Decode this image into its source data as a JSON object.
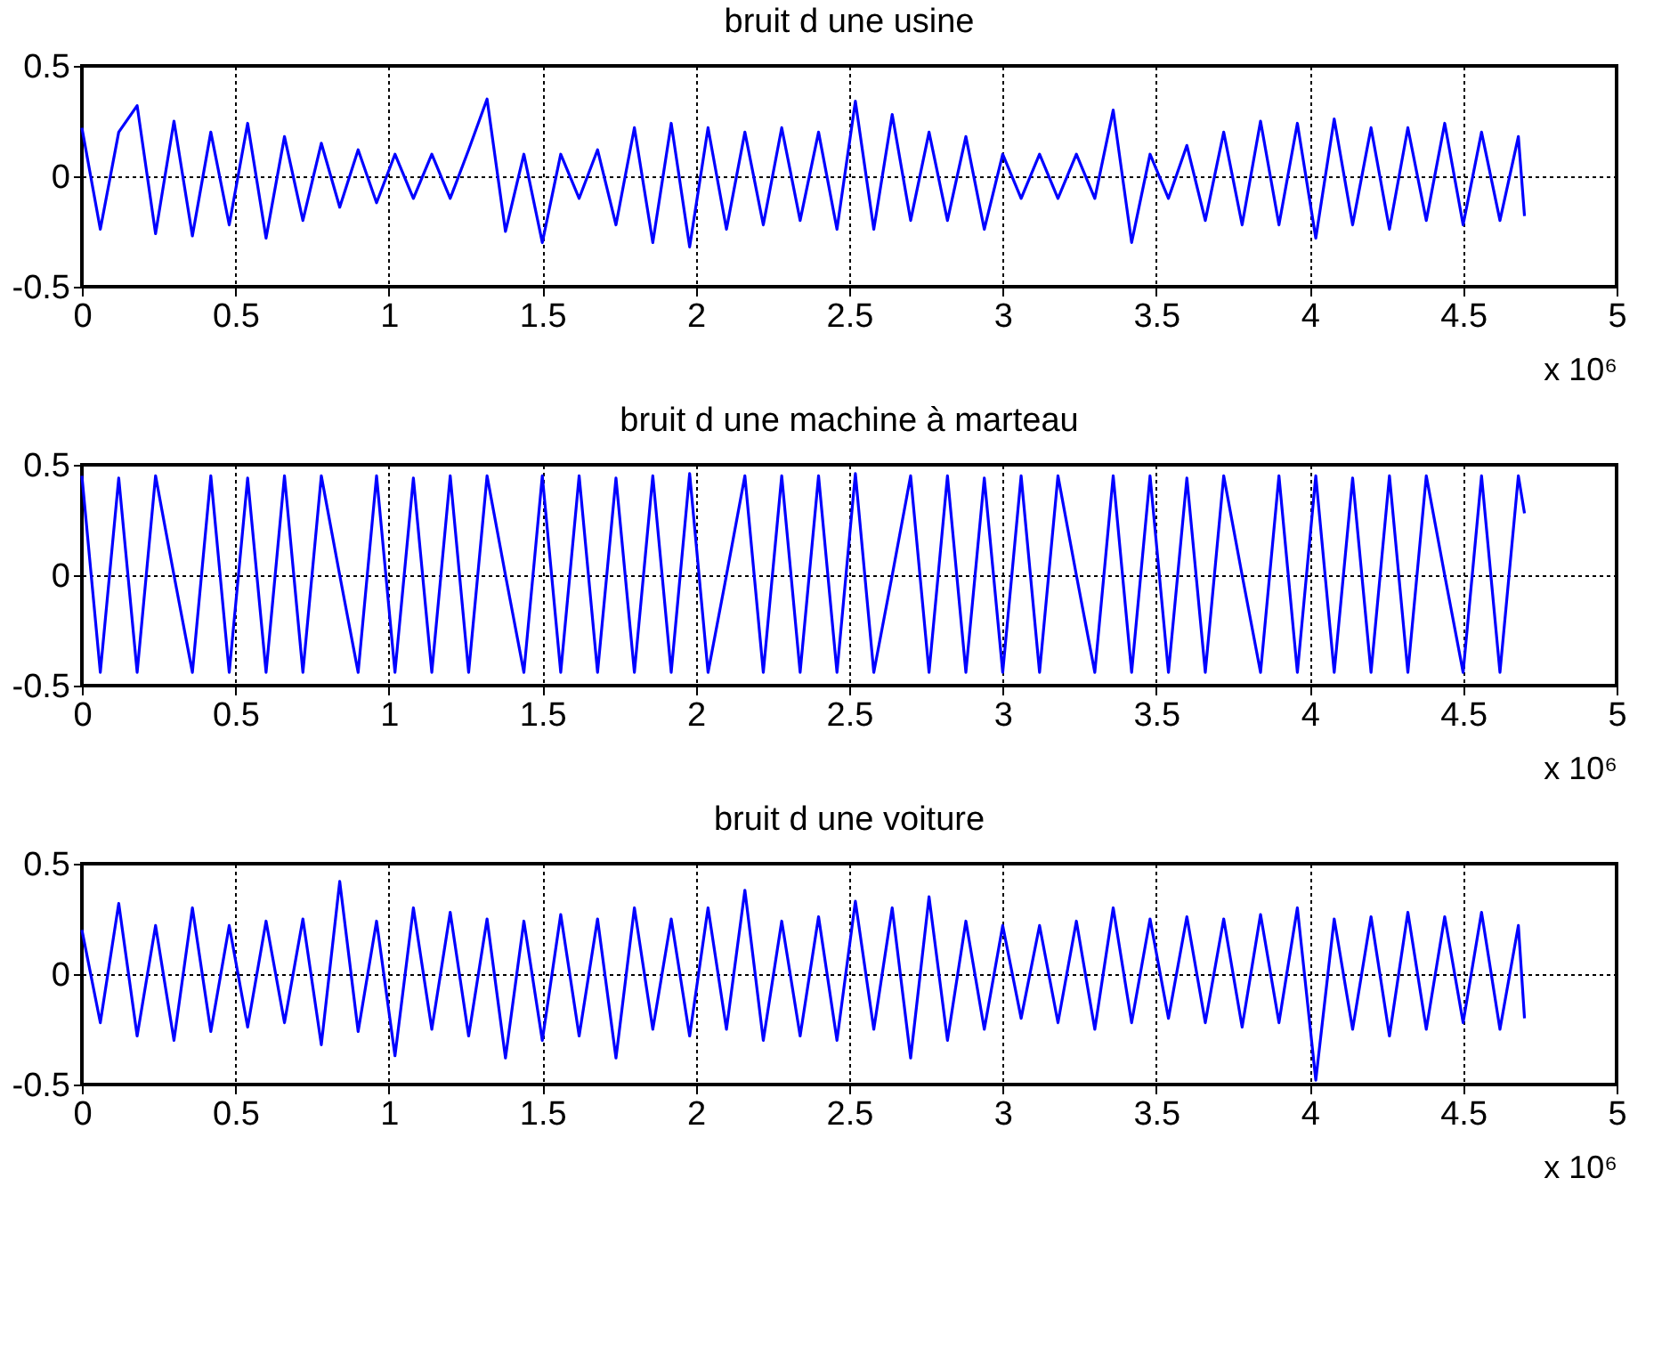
{
  "chart_data": [
    {
      "type": "line",
      "title": "bruit d une usine",
      "xlabel": "x 10⁶",
      "color": "#0000ff",
      "grid": true,
      "xlim": [
        0,
        5
      ],
      "xticks": [
        0,
        0.5,
        1,
        1.5,
        2,
        2.5,
        3,
        3.5,
        4,
        4.5,
        5
      ],
      "ylim": [
        -0.5,
        0.5
      ],
      "yticks": [
        -0.5,
        0,
        0.5
      ],
      "x": [
        0,
        0.06,
        0.12,
        0.18,
        0.24,
        0.3,
        0.36,
        0.42,
        0.48,
        0.54,
        0.6,
        0.66,
        0.72,
        0.78,
        0.84,
        0.9,
        0.96,
        1.02,
        1.08,
        1.14,
        1.2,
        1.26,
        1.32,
        1.38,
        1.44,
        1.5,
        1.56,
        1.62,
        1.68,
        1.74,
        1.8,
        1.86,
        1.92,
        1.98,
        2.04,
        2.1,
        2.16,
        2.22,
        2.28,
        2.34,
        2.4,
        2.46,
        2.52,
        2.58,
        2.64,
        2.7,
        2.76,
        2.82,
        2.88,
        2.94,
        3,
        3.06,
        3.12,
        3.18,
        3.24,
        3.3,
        3.36,
        3.42,
        3.48,
        3.54,
        3.6,
        3.66,
        3.72,
        3.78,
        3.84,
        3.9,
        3.96,
        4.02,
        4.08,
        4.14,
        4.2,
        4.26,
        4.32,
        4.38,
        4.44,
        4.5,
        4.56,
        4.62,
        4.68,
        4.7
      ],
      "values": [
        0.22,
        -0.24,
        0.2,
        0.32,
        -0.26,
        0.25,
        -0.27,
        0.2,
        -0.22,
        0.24,
        -0.28,
        0.18,
        -0.2,
        0.15,
        -0.14,
        0.12,
        -0.12,
        0.1,
        -0.1,
        0.1,
        -0.1,
        0.12,
        0.35,
        -0.25,
        0.1,
        -0.3,
        0.1,
        -0.1,
        0.12,
        -0.22,
        0.22,
        -0.3,
        0.24,
        -0.32,
        0.22,
        -0.24,
        0.2,
        -0.22,
        0.22,
        -0.2,
        0.2,
        -0.24,
        0.34,
        -0.24,
        0.28,
        -0.2,
        0.2,
        -0.2,
        0.18,
        -0.24,
        0.1,
        -0.1,
        0.1,
        -0.1,
        0.1,
        -0.1,
        0.3,
        -0.3,
        0.1,
        -0.1,
        0.14,
        -0.2,
        0.2,
        -0.22,
        0.25,
        -0.22,
        0.24,
        -0.28,
        0.26,
        -0.22,
        0.22,
        -0.24,
        0.22,
        -0.2,
        0.24,
        -0.22,
        0.2,
        -0.2,
        0.18,
        -0.18
      ]
    },
    {
      "type": "line",
      "title": "bruit d une machine à marteau",
      "xlabel": "x 10⁶",
      "color": "#0000ff",
      "grid": true,
      "xlim": [
        0,
        5
      ],
      "xticks": [
        0,
        0.5,
        1,
        1.5,
        2,
        2.5,
        3,
        3.5,
        4,
        4.5,
        5
      ],
      "ylim": [
        -0.5,
        0.5
      ],
      "yticks": [
        -0.5,
        0,
        0.5
      ],
      "x": [
        0,
        0.06,
        0.12,
        0.18,
        0.24,
        0.3,
        0.36,
        0.42,
        0.48,
        0.54,
        0.6,
        0.66,
        0.72,
        0.78,
        0.84,
        0.9,
        0.96,
        1.02,
        1.08,
        1.14,
        1.2,
        1.26,
        1.32,
        1.38,
        1.44,
        1.5,
        1.56,
        1.62,
        1.68,
        1.74,
        1.8,
        1.86,
        1.92,
        1.98,
        2.04,
        2.1,
        2.16,
        2.22,
        2.28,
        2.34,
        2.4,
        2.46,
        2.52,
        2.58,
        2.64,
        2.7,
        2.76,
        2.82,
        2.88,
        2.94,
        3,
        3.06,
        3.12,
        3.18,
        3.24,
        3.3,
        3.36,
        3.42,
        3.48,
        3.54,
        3.6,
        3.66,
        3.72,
        3.78,
        3.84,
        3.9,
        3.96,
        4.02,
        4.08,
        4.14,
        4.2,
        4.26,
        4.32,
        4.38,
        4.44,
        4.5,
        4.56,
        4.62,
        4.68,
        4.7
      ],
      "values": [
        0.45,
        -0.44,
        0.44,
        -0.44,
        0.45,
        0,
        -0.44,
        0.45,
        -0.44,
        0.44,
        -0.44,
        0.45,
        -0.44,
        0.45,
        0,
        -0.44,
        0.45,
        -0.44,
        0.44,
        -0.44,
        0.45,
        -0.44,
        0.45,
        0,
        -0.44,
        0.45,
        -0.44,
        0.45,
        -0.44,
        0.44,
        -0.44,
        0.45,
        -0.44,
        0.46,
        -0.44,
        0,
        0.45,
        -0.44,
        0.45,
        -0.44,
        0.45,
        -0.44,
        0.46,
        -0.44,
        0,
        0.45,
        -0.44,
        0.45,
        -0.44,
        0.44,
        -0.44,
        0.45,
        -0.44,
        0.45,
        0,
        -0.44,
        0.45,
        -0.44,
        0.45,
        -0.44,
        0.44,
        -0.44,
        0.45,
        0,
        -0.44,
        0.45,
        -0.44,
        0.45,
        -0.44,
        0.44,
        -0.44,
        0.45,
        -0.44,
        0.45,
        0,
        -0.44,
        0.45,
        -0.44,
        0.45,
        0.28
      ]
    },
    {
      "type": "line",
      "title": "bruit d une voiture",
      "xlabel": "x 10⁶",
      "color": "#0000ff",
      "grid": true,
      "xlim": [
        0,
        5
      ],
      "xticks": [
        0,
        0.5,
        1,
        1.5,
        2,
        2.5,
        3,
        3.5,
        4,
        4.5,
        5
      ],
      "ylim": [
        -0.5,
        0.5
      ],
      "yticks": [
        -0.5,
        0,
        0.5
      ],
      "x": [
        0,
        0.06,
        0.12,
        0.18,
        0.24,
        0.3,
        0.36,
        0.42,
        0.48,
        0.54,
        0.6,
        0.66,
        0.72,
        0.78,
        0.84,
        0.9,
        0.96,
        1.02,
        1.08,
        1.14,
        1.2,
        1.26,
        1.32,
        1.38,
        1.44,
        1.5,
        1.56,
        1.62,
        1.68,
        1.74,
        1.8,
        1.86,
        1.92,
        1.98,
        2.04,
        2.1,
        2.16,
        2.22,
        2.28,
        2.34,
        2.4,
        2.46,
        2.52,
        2.58,
        2.64,
        2.7,
        2.76,
        2.82,
        2.88,
        2.94,
        3,
        3.06,
        3.12,
        3.18,
        3.24,
        3.3,
        3.36,
        3.42,
        3.48,
        3.54,
        3.6,
        3.66,
        3.72,
        3.78,
        3.84,
        3.9,
        3.96,
        4.02,
        4.08,
        4.14,
        4.2,
        4.26,
        4.32,
        4.38,
        4.44,
        4.5,
        4.56,
        4.62,
        4.68,
        4.7
      ],
      "values": [
        0.2,
        -0.22,
        0.32,
        -0.28,
        0.22,
        -0.3,
        0.3,
        -0.26,
        0.22,
        -0.24,
        0.24,
        -0.22,
        0.25,
        -0.32,
        0.42,
        -0.26,
        0.24,
        -0.37,
        0.3,
        -0.25,
        0.28,
        -0.28,
        0.25,
        -0.38,
        0.24,
        -0.3,
        0.27,
        -0.28,
        0.25,
        -0.38,
        0.3,
        -0.25,
        0.25,
        -0.28,
        0.3,
        -0.25,
        0.38,
        -0.3,
        0.24,
        -0.28,
        0.26,
        -0.3,
        0.33,
        -0.25,
        0.3,
        -0.38,
        0.35,
        -0.3,
        0.24,
        -0.25,
        0.22,
        -0.2,
        0.22,
        -0.22,
        0.24,
        -0.25,
        0.3,
        -0.22,
        0.25,
        -0.2,
        0.26,
        -0.22,
        0.25,
        -0.24,
        0.27,
        -0.22,
        0.3,
        -0.48,
        0.25,
        -0.25,
        0.26,
        -0.28,
        0.28,
        -0.25,
        0.26,
        -0.22,
        0.28,
        -0.25,
        0.22,
        -0.2
      ]
    }
  ]
}
